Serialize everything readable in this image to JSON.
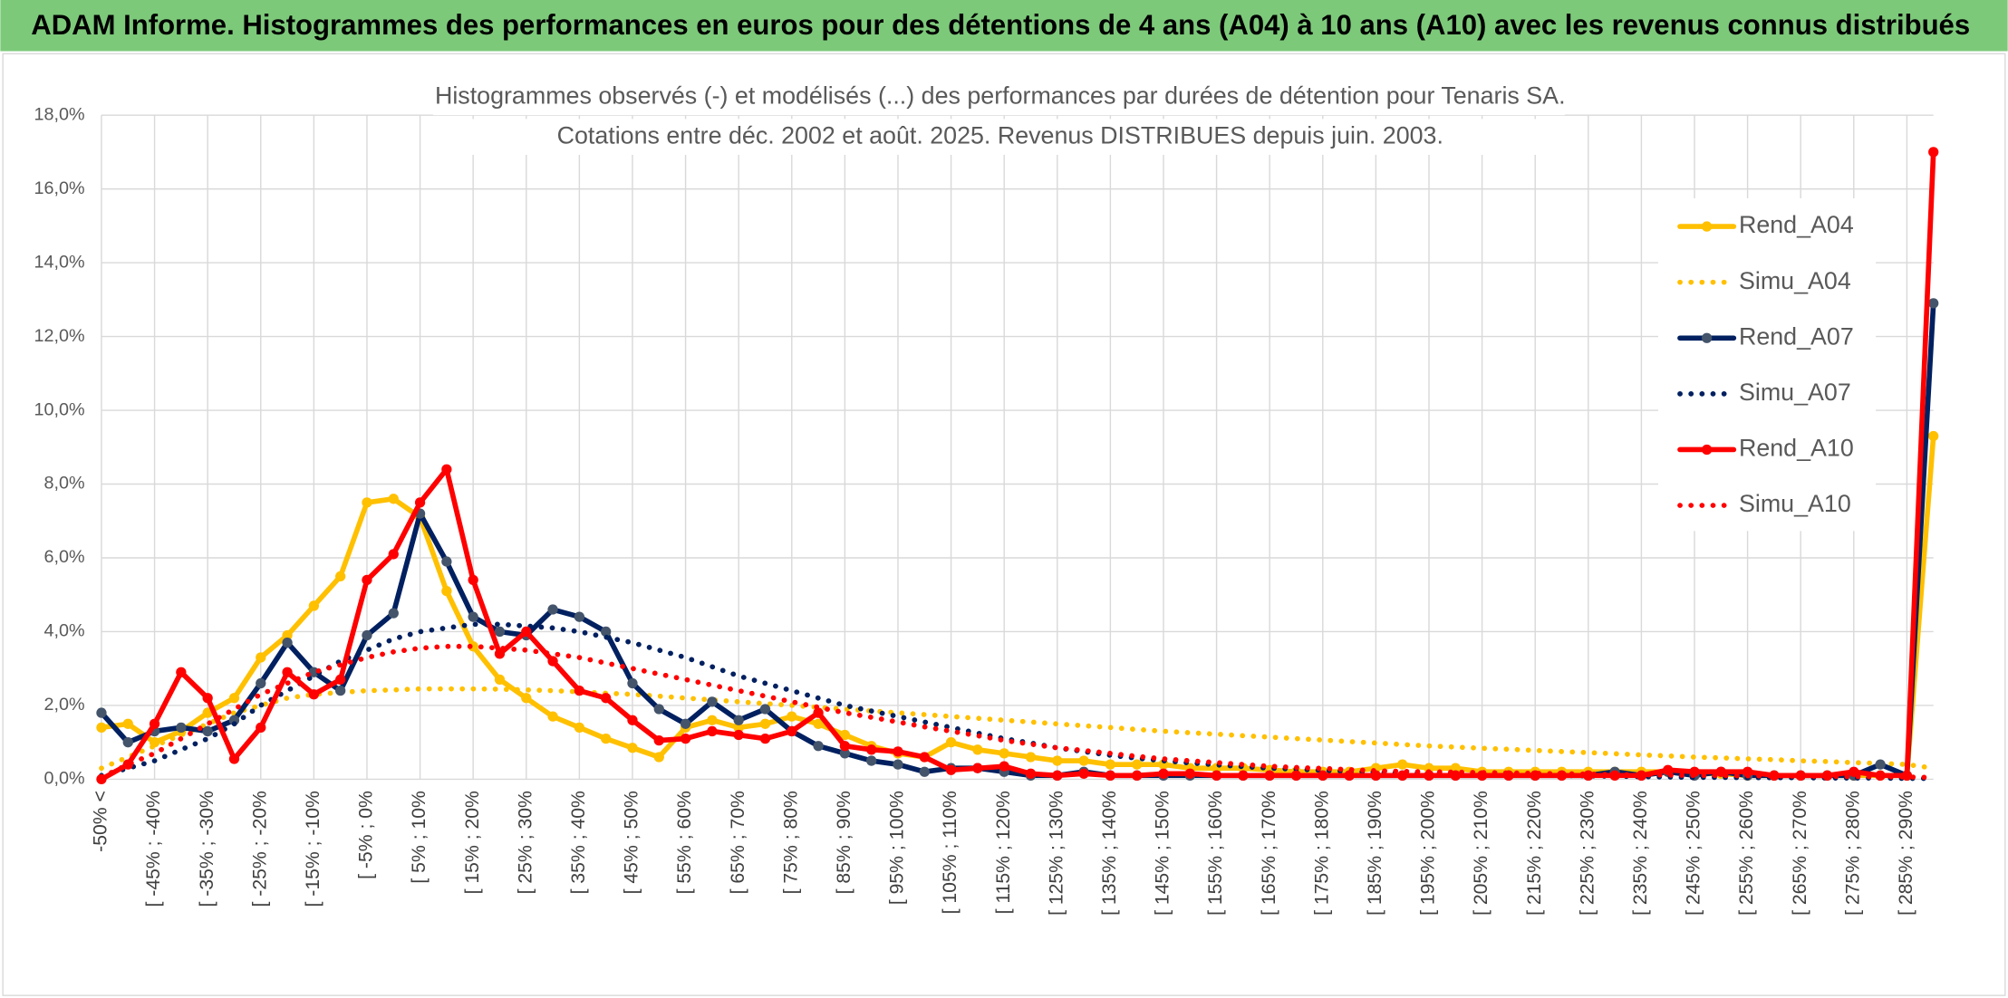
{
  "chart_data": {
    "type": "line",
    "header": "ADAM Informe. Histogrammes des performances en euros pour des détentions de 4 ans (A04) à 10 ans (A10) avec les revenus connus distribués",
    "title": [
      "Histogrammes observés (-) et modélisés (...) des performances par durées de détention pour Tenaris SA.",
      "Cotations entre déc. 2002 et août. 2025. Revenus DISTRIBUES depuis juin. 2003."
    ],
    "categories": [
      "-50% <",
      null,
      "[ -45% ; -40%",
      null,
      "[ -35% ; -30%",
      null,
      "[ -25% ; -20%",
      null,
      "[ -15% ; -10%",
      null,
      "[ -5% ; 0%",
      null,
      "[ 5% ; 10%",
      null,
      "[ 15% ; 20%",
      null,
      "[ 25% ; 30%",
      null,
      "[ 35% ; 40%",
      null,
      "[ 45% ; 50%",
      null,
      "[ 55% ; 60%",
      null,
      "[ 65% ; 70%",
      null,
      "[ 75% ; 80%",
      null,
      "[ 85% ; 90%",
      null,
      "[ 95% ; 100%",
      null,
      "[ 105% ; 110%",
      null,
      "[ 115% ; 120%",
      null,
      "[ 125% ; 130%",
      null,
      "[ 135% ; 140%",
      null,
      "[ 145% ; 150%",
      null,
      "[ 155% ; 160%",
      null,
      "[ 165% ; 170%",
      null,
      "[ 175% ; 180%",
      null,
      "[ 185% ; 190%",
      null,
      "[ 195% ; 200%",
      null,
      "[ 205% ; 210%",
      null,
      "[ 215% ; 220%",
      null,
      "[ 225% ; 230%",
      null,
      "[ 235% ; 240%",
      null,
      "[ 245% ; 250%",
      null,
      "[ 255% ; 260%",
      null,
      "[ 265% ; 270%",
      null,
      "[ 275% ; 280%",
      null,
      "[ 285% ; 290%",
      null
    ],
    "series": [
      {
        "name": "Rend_A04",
        "color": "#ffc000",
        "style": "solid",
        "markers": true,
        "values": [
          1.4,
          1.5,
          1.0,
          1.3,
          1.8,
          2.2,
          3.3,
          3.9,
          4.7,
          5.5,
          7.5,
          7.6,
          7.1,
          5.1,
          3.6,
          2.7,
          2.2,
          1.7,
          1.4,
          1.1,
          0.85,
          0.6,
          1.4,
          1.6,
          1.4,
          1.5,
          1.7,
          1.5,
          1.2,
          0.9,
          0.7,
          0.6,
          1.0,
          0.8,
          0.7,
          0.6,
          0.5,
          0.5,
          0.4,
          0.4,
          0.4,
          0.3,
          0.3,
          0.3,
          0.25,
          0.2,
          0.2,
          0.2,
          0.3,
          0.4,
          0.3,
          0.3,
          0.2,
          0.2,
          0.2,
          0.2,
          0.2,
          0.2,
          0.2,
          0.2,
          0.15,
          0.15,
          0.1,
          0.1,
          0.1,
          0.1,
          0.1,
          0.1,
          0.1,
          9.3
        ]
      },
      {
        "name": "Simu_A04",
        "color": "#ffc000",
        "style": "dotted",
        "markers": false,
        "values": [
          0.3,
          0.6,
          0.9,
          1.2,
          1.5,
          1.8,
          2.0,
          2.2,
          2.3,
          2.35,
          2.4,
          2.42,
          2.45,
          2.45,
          2.45,
          2.44,
          2.42,
          2.4,
          2.37,
          2.33,
          2.3,
          2.25,
          2.2,
          2.15,
          2.1,
          2.05,
          2.0,
          1.95,
          1.9,
          1.85,
          1.8,
          1.75,
          1.7,
          1.65,
          1.6,
          1.55,
          1.5,
          1.45,
          1.4,
          1.35,
          1.3,
          1.26,
          1.22,
          1.18,
          1.14,
          1.1,
          1.06,
          1.02,
          0.98,
          0.94,
          0.9,
          0.87,
          0.84,
          0.81,
          0.78,
          0.75,
          0.72,
          0.69,
          0.66,
          0.63,
          0.6,
          0.58,
          0.55,
          0.53,
          0.5,
          0.48,
          0.45,
          0.43,
          0.4,
          0.3
        ]
      },
      {
        "name": "Rend_A07",
        "color": "#002060",
        "style": "solid",
        "markers": true,
        "values": [
          1.8,
          1.0,
          1.3,
          1.4,
          1.3,
          1.6,
          2.6,
          3.7,
          2.9,
          2.4,
          3.9,
          4.5,
          7.2,
          5.9,
          4.4,
          4.0,
          3.9,
          4.6,
          4.4,
          4.0,
          2.6,
          1.9,
          1.5,
          2.1,
          1.6,
          1.9,
          1.3,
          0.9,
          0.7,
          0.5,
          0.4,
          0.2,
          0.3,
          0.3,
          0.2,
          0.1,
          0.1,
          0.2,
          0.1,
          0.1,
          0.1,
          0.1,
          0.1,
          0.1,
          0.1,
          0.1,
          0.1,
          0.1,
          0.1,
          0.1,
          0.1,
          0.1,
          0.1,
          0.1,
          0.1,
          0.1,
          0.1,
          0.2,
          0.1,
          0.2,
          0.1,
          0.2,
          0.1,
          0.1,
          0.1,
          0.1,
          0.1,
          0.4,
          0.1,
          12.9
        ]
      },
      {
        "name": "Simu_A07",
        "color": "#002060",
        "style": "dotted",
        "markers": false,
        "values": [
          0.1,
          0.3,
          0.5,
          0.8,
          1.1,
          1.5,
          2.0,
          2.4,
          2.8,
          3.2,
          3.5,
          3.8,
          4.0,
          4.1,
          4.2,
          4.2,
          4.15,
          4.1,
          4.0,
          3.85,
          3.7,
          3.5,
          3.3,
          3.05,
          2.8,
          2.6,
          2.4,
          2.2,
          2.0,
          1.85,
          1.7,
          1.55,
          1.4,
          1.25,
          1.1,
          0.98,
          0.85,
          0.75,
          0.65,
          0.57,
          0.5,
          0.44,
          0.39,
          0.34,
          0.3,
          0.27,
          0.24,
          0.21,
          0.19,
          0.17,
          0.15,
          0.14,
          0.13,
          0.12,
          0.11,
          0.1,
          0.09,
          0.08,
          0.07,
          0.06,
          0.05,
          0.05,
          0.04,
          0.04,
          0.04,
          0.03,
          0.03,
          0.03,
          0.02,
          0.02
        ]
      },
      {
        "name": "Rend_A10",
        "color": "#ff0000",
        "style": "solid",
        "markers": true,
        "values": [
          0.0,
          0.4,
          1.5,
          2.9,
          2.2,
          0.55,
          1.4,
          2.9,
          2.3,
          2.7,
          5.4,
          6.1,
          7.5,
          8.4,
          5.4,
          3.4,
          4.0,
          3.2,
          2.4,
          2.2,
          1.6,
          1.05,
          1.1,
          1.3,
          1.2,
          1.1,
          1.3,
          1.8,
          0.9,
          0.8,
          0.75,
          0.6,
          0.25,
          0.3,
          0.35,
          0.15,
          0.1,
          0.15,
          0.1,
          0.1,
          0.15,
          0.15,
          0.1,
          0.1,
          0.1,
          0.1,
          0.1,
          0.1,
          0.1,
          0.1,
          0.1,
          0.1,
          0.1,
          0.1,
          0.1,
          0.1,
          0.1,
          0.1,
          0.1,
          0.25,
          0.2,
          0.2,
          0.2,
          0.1,
          0.1,
          0.1,
          0.2,
          0.1,
          0.1,
          17.0
        ]
      },
      {
        "name": "Simu_A10",
        "color": "#ff0000",
        "style": "dotted",
        "markers": false,
        "values": [
          0.05,
          0.4,
          0.7,
          1.1,
          1.5,
          1.9,
          2.3,
          2.6,
          2.9,
          3.1,
          3.3,
          3.45,
          3.55,
          3.6,
          3.6,
          3.55,
          3.5,
          3.4,
          3.3,
          3.15,
          3.0,
          2.85,
          2.7,
          2.55,
          2.4,
          2.25,
          2.1,
          1.95,
          1.8,
          1.68,
          1.55,
          1.42,
          1.3,
          1.18,
          1.05,
          0.95,
          0.85,
          0.78,
          0.7,
          0.62,
          0.55,
          0.5,
          0.45,
          0.4,
          0.35,
          0.32,
          0.29,
          0.26,
          0.23,
          0.21,
          0.2,
          0.19,
          0.18,
          0.17,
          0.16,
          0.15,
          0.14,
          0.13,
          0.12,
          0.11,
          0.1,
          0.1,
          0.09,
          0.09,
          0.08,
          0.08,
          0.07,
          0.07,
          0.06,
          0.05
        ]
      }
    ],
    "ylim": [
      0,
      18
    ],
    "yticks": [
      {
        "value": 0,
        "label": "0,0%"
      },
      {
        "value": 2,
        "label": "2,0%"
      },
      {
        "value": 4,
        "label": "4,0%"
      },
      {
        "value": 6,
        "label": "6,0%"
      },
      {
        "value": 8,
        "label": "8,0%"
      },
      {
        "value": 10,
        "label": "10,0%"
      },
      {
        "value": 12,
        "label": "12,0%"
      },
      {
        "value": 14,
        "label": "14,0%"
      },
      {
        "value": 16,
        "label": "16,0%"
      },
      {
        "value": 18,
        "label": "18,0%"
      }
    ],
    "grid": true,
    "legend": "right"
  }
}
